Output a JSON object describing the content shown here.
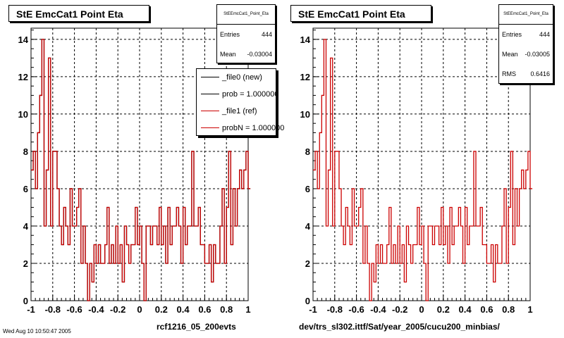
{
  "colors": {
    "new": "#000000",
    "ref": "#cc0000",
    "grid": "#000000"
  },
  "panels": [
    {
      "title": "StE EmcCat1 Point Eta",
      "stats": {
        "name": "StEEmcCat1_Point_Eta",
        "entries_label": "Entries",
        "entries": "444",
        "mean_label": "Mean",
        "mean": "-0.03004"
      },
      "caption": "rcf1216_05_200evts",
      "legend": [
        {
          "label": "_file0 (new)",
          "color": "#000000"
        },
        {
          "label": "prob = 1.000000",
          "color": "#000000"
        },
        {
          "label": "_file1 (ref)",
          "color": "#cc0000"
        },
        {
          "label": "probN = 1.000000",
          "color": "#cc0000"
        }
      ]
    },
    {
      "title": "StE EmcCat1 Point Eta",
      "stats": {
        "name": "StEEmcCat1_Point_Eta",
        "entries_label": "Entries",
        "entries": "444",
        "mean_label": "Mean",
        "mean": "-0.03005",
        "rms_label": "RMS",
        "rms": "0.6416"
      },
      "caption": "dev/trs_sl302.ittf/Sat/year_2005/cucu200_minbias/"
    }
  ],
  "footer": "Wed Aug 10 10:50:47 2005",
  "chart_data": [
    {
      "type": "histogram",
      "title": "StE EmcCat1 Point Eta",
      "xlim": [
        -1,
        1
      ],
      "ylim": [
        0,
        14.6
      ],
      "xticks": [
        "-1",
        "-0.8",
        "-0.6",
        "-0.4",
        "-0.2",
        "0",
        "0.2",
        "0.4",
        "0.6",
        "0.8",
        "1"
      ],
      "yticks": [
        "0",
        "2",
        "4",
        "6",
        "8",
        "10",
        "12",
        "14"
      ],
      "grid": true,
      "bin_width": 0.02,
      "series": [
        {
          "name": "_file0 (new)",
          "values": [
            7,
            8,
            6,
            9,
            11,
            14,
            4,
            7,
            13,
            4,
            8,
            8,
            6,
            4,
            3,
            5,
            4,
            3,
            6,
            4,
            4,
            5,
            6,
            2,
            4,
            2,
            0,
            2,
            1,
            3,
            2,
            3,
            2,
            2,
            3,
            5,
            2,
            3,
            2,
            4,
            2,
            3,
            1,
            4,
            3,
            2,
            3,
            3,
            5,
            3,
            4,
            2,
            0,
            4,
            4,
            3,
            4,
            4,
            3,
            5,
            3,
            4,
            2,
            5,
            3,
            4,
            4,
            5,
            4,
            2,
            5,
            3,
            4,
            4,
            8,
            4,
            4,
            5,
            3,
            3,
            2,
            2,
            3,
            1,
            3,
            2,
            2,
            4,
            6,
            2,
            5,
            8,
            3,
            6,
            4,
            6,
            7,
            6,
            7,
            8,
            6
          ]
        },
        {
          "name": "_file1 (ref)",
          "values": [
            7,
            8,
            6,
            9,
            11,
            14,
            4,
            7,
            13,
            4,
            8,
            8,
            6,
            4,
            3,
            5,
            4,
            3,
            6,
            4,
            4,
            5,
            6,
            2,
            4,
            2,
            0,
            2,
            1,
            3,
            2,
            3,
            2,
            2,
            3,
            5,
            2,
            3,
            2,
            4,
            2,
            3,
            1,
            4,
            3,
            2,
            3,
            3,
            5,
            3,
            4,
            2,
            0,
            4,
            4,
            3,
            4,
            4,
            3,
            5,
            3,
            4,
            2,
            5,
            3,
            4,
            4,
            5,
            4,
            2,
            5,
            3,
            4,
            4,
            8,
            4,
            4,
            5,
            3,
            3,
            2,
            2,
            3,
            1,
            3,
            2,
            2,
            4,
            6,
            2,
            5,
            8,
            3,
            6,
            4,
            6,
            7,
            6,
            7,
            8,
            6
          ]
        }
      ]
    },
    {
      "type": "histogram",
      "title": "StE EmcCat1 Point Eta",
      "xlim": [
        -1,
        1
      ],
      "ylim": [
        0,
        14.6
      ],
      "xticks": [
        "-1",
        "-0.8",
        "-0.6",
        "-0.4",
        "-0.2",
        "0",
        "0.2",
        "0.4",
        "0.6",
        "0.8",
        "1"
      ],
      "yticks": [
        "0",
        "2",
        "4",
        "6",
        "8",
        "10",
        "12",
        "14"
      ],
      "grid": true,
      "bin_width": 0.02,
      "series": [
        {
          "name": "_file1 (ref)",
          "values": [
            7,
            8,
            6,
            9,
            11,
            14,
            4,
            7,
            13,
            4,
            8,
            8,
            6,
            4,
            3,
            5,
            4,
            3,
            6,
            4,
            4,
            5,
            6,
            2,
            4,
            2,
            0,
            2,
            1,
            3,
            2,
            3,
            2,
            2,
            3,
            5,
            2,
            3,
            2,
            4,
            2,
            3,
            1,
            4,
            3,
            2,
            3,
            3,
            5,
            3,
            4,
            2,
            0,
            4,
            4,
            3,
            4,
            4,
            3,
            5,
            3,
            4,
            2,
            5,
            3,
            4,
            4,
            5,
            4,
            2,
            5,
            3,
            4,
            4,
            8,
            4,
            4,
            5,
            3,
            3,
            2,
            2,
            3,
            1,
            3,
            2,
            2,
            4,
            6,
            2,
            5,
            8,
            3,
            6,
            4,
            6,
            7,
            6,
            7,
            8,
            6
          ]
        }
      ]
    }
  ]
}
